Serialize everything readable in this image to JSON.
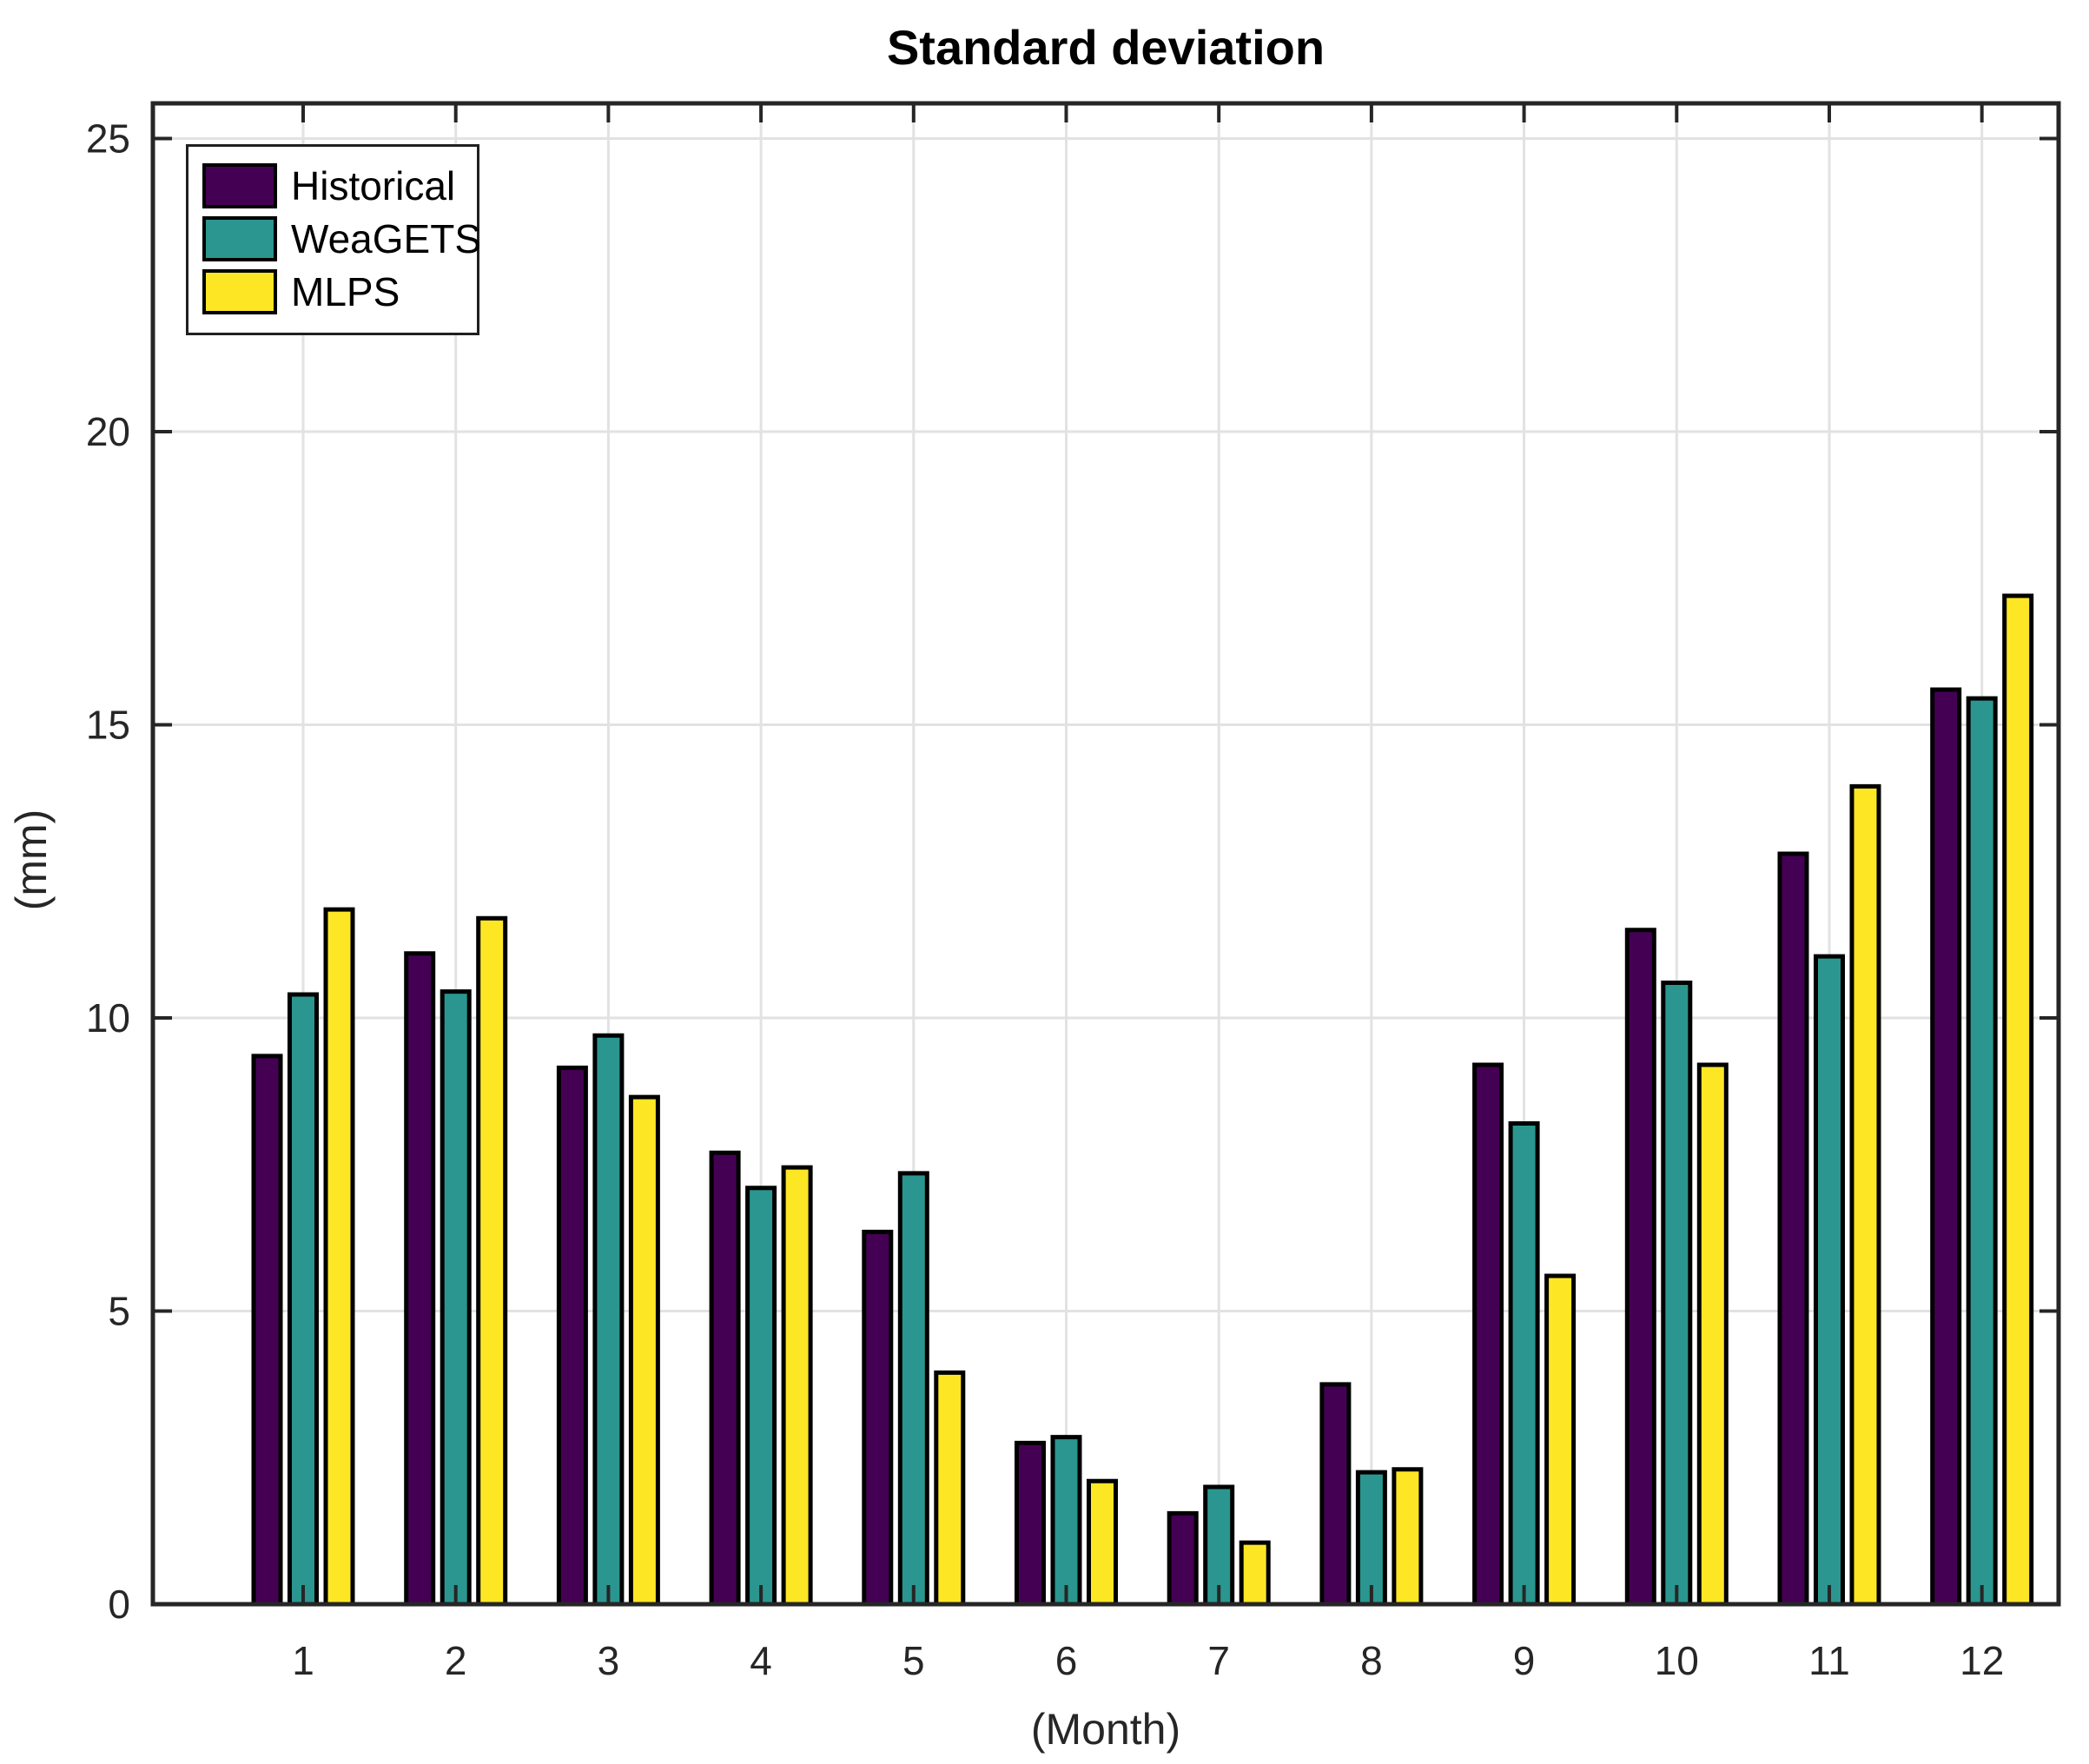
{
  "chart_data": {
    "type": "bar",
    "title": "Standard deviation",
    "xlabel": "(Month)",
    "ylabel": "(mm)",
    "categories": [
      "1",
      "2",
      "3",
      "4",
      "5",
      "6",
      "7",
      "8",
      "9",
      "10",
      "11",
      "12"
    ],
    "series": [
      {
        "name": "Historical",
        "color": "#440154",
        "values": [
          9.35,
          11.1,
          9.15,
          7.7,
          6.35,
          2.75,
          1.55,
          3.75,
          9.2,
          11.5,
          12.8,
          15.6
        ]
      },
      {
        "name": "WeaGETS",
        "color": "#2a968f",
        "values": [
          10.4,
          10.45,
          9.7,
          7.1,
          7.35,
          2.85,
          2.0,
          2.25,
          8.2,
          10.6,
          11.05,
          15.45
        ]
      },
      {
        "name": "MLPS",
        "color": "#fde725",
        "values": [
          11.85,
          11.7,
          8.65,
          7.45,
          3.95,
          2.1,
          1.05,
          2.3,
          5.6,
          9.2,
          13.95,
          17.2
        ]
      }
    ],
    "ylim": [
      0,
      25.6
    ],
    "y_ticks": [
      0,
      5,
      10,
      15,
      20,
      25
    ],
    "grid": true,
    "legend_position": "top-left",
    "colors": {
      "axis": "#262626",
      "tick_text": "#262626",
      "grid": "#e2e2e2",
      "bar_edge": "#000000",
      "background": "#ffffff"
    }
  }
}
